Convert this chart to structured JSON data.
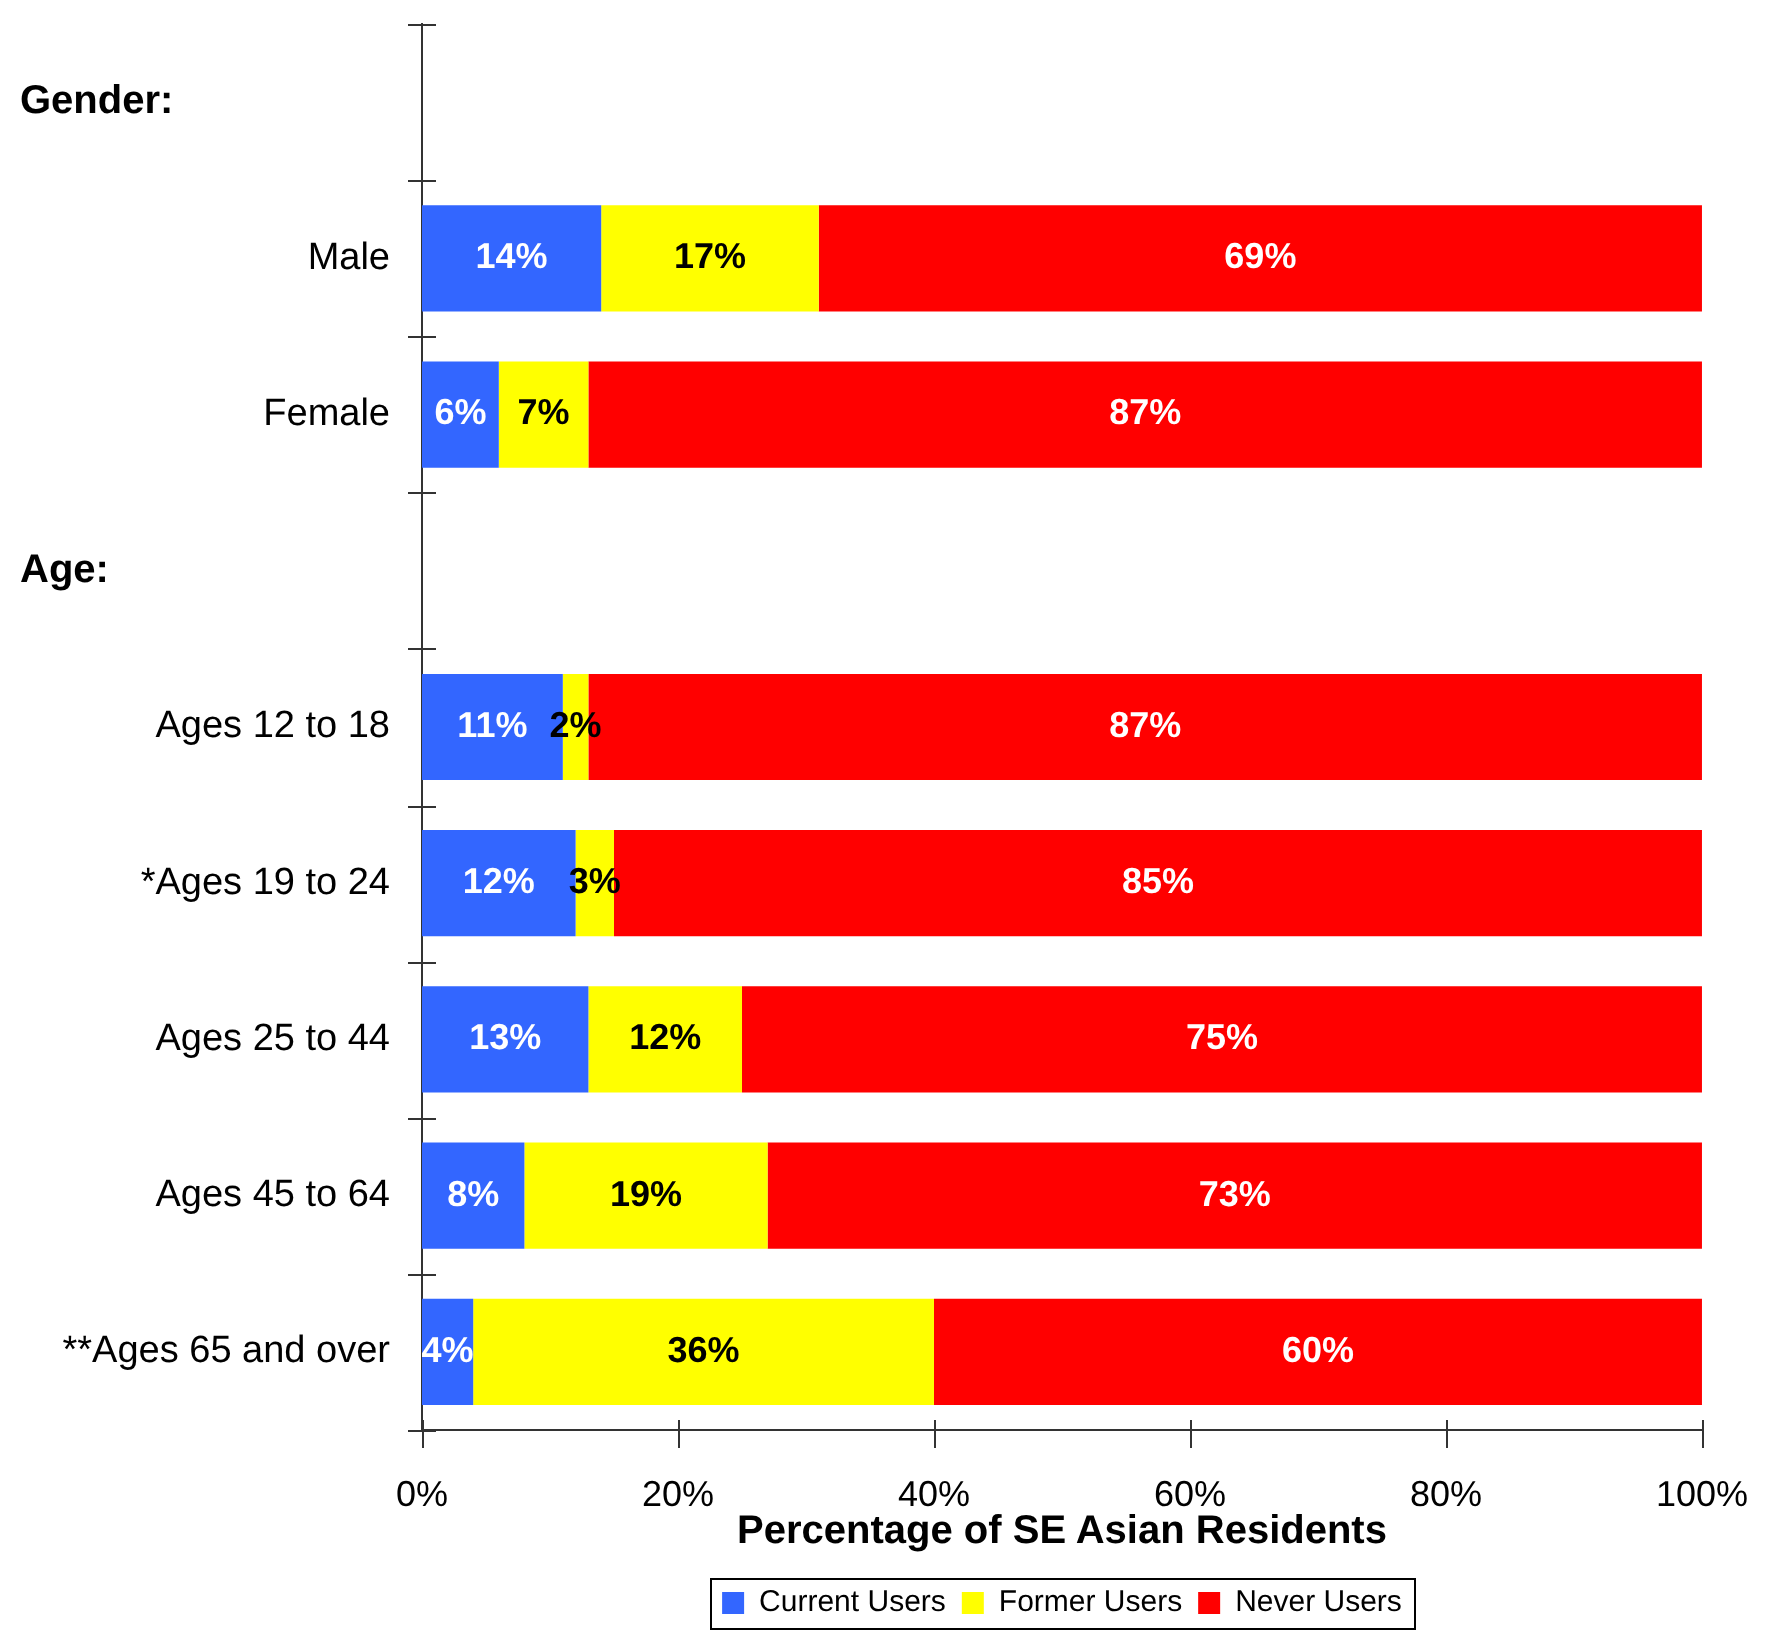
{
  "chart_data": {
    "type": "bar",
    "orientation": "horizontal",
    "stacked": true,
    "categories": [
      null,
      "Male",
      "Female",
      null,
      "Ages 12 to 18",
      "*Ages 19 to 24",
      "Ages 25 to 44",
      "Ages 45 to 64",
      "**Ages 65 and over"
    ],
    "series": [
      {
        "name": "Current Users",
        "color": "#3366ff",
        "values": [
          null,
          14,
          6,
          null,
          11,
          12,
          13,
          8,
          4
        ],
        "value_labels": [
          null,
          "14%",
          "6%",
          null,
          "11%",
          "12%",
          "13%",
          "8%",
          "4%"
        ]
      },
      {
        "name": "Former Users",
        "color": "#ffff00",
        "values": [
          null,
          17,
          7,
          null,
          2,
          3,
          12,
          19,
          36
        ],
        "value_labels": [
          null,
          "17%",
          "7%",
          null,
          "2%",
          "3%",
          "12%",
          "19%",
          "36%"
        ]
      },
      {
        "name": "Never Users",
        "color": "#ff0000",
        "values": [
          null,
          69,
          87,
          null,
          87,
          85,
          75,
          73,
          60
        ],
        "value_labels": [
          null,
          "69%",
          "87%",
          null,
          "87%",
          "85%",
          "75%",
          "73%",
          "60%"
        ]
      }
    ],
    "annotations": [
      "Gender:",
      "Age:"
    ],
    "xlabel": "Percentage of SE Asian Residents",
    "xlim": [
      0,
      100
    ],
    "xticks": [
      {
        "value": 0,
        "label": "0%"
      },
      {
        "value": 20,
        "label": "20%"
      },
      {
        "value": 40,
        "label": "40%"
      },
      {
        "value": 60,
        "label": "60%"
      },
      {
        "value": 80,
        "label": "80%"
      },
      {
        "value": 100,
        "label": "100%"
      }
    ],
    "grid": false,
    "legend": "bottom"
  }
}
